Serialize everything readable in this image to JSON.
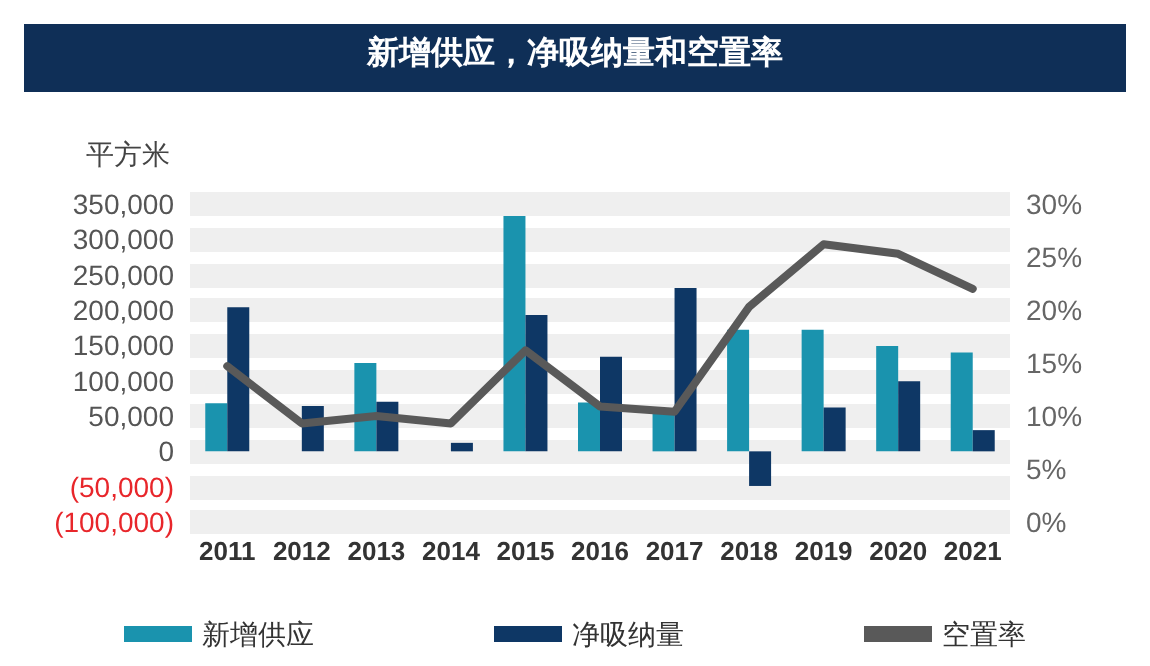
{
  "chart_data": {
    "type": "bar",
    "title": "新增供应，净吸纳量和空置率",
    "ylabel": "平方米",
    "categories": [
      "2011",
      "2012",
      "2013",
      "2014",
      "2015",
      "2016",
      "2017",
      "2018",
      "2019",
      "2020",
      "2021"
    ],
    "series": [
      {
        "name": "新增供应",
        "color": "#1a93ae",
        "values": [
          68000,
          0,
          125000,
          0,
          333000,
          69000,
          55000,
          172000,
          172000,
          149000,
          140000
        ]
      },
      {
        "name": "净吸纳量",
        "color": "#0e3765",
        "values": [
          204000,
          64000,
          70000,
          12000,
          193000,
          134000,
          231000,
          -49000,
          62000,
          99000,
          30000
        ]
      },
      {
        "name": "空置率",
        "type": "line",
        "axis": "y2",
        "color": "#595959",
        "marker": "none",
        "values": [
          14.7,
          9.3,
          10,
          9.3,
          16.2,
          10.9,
          10.4,
          20.3,
          26.2,
          25.3,
          22
        ]
      }
    ],
    "ylim": [
      -100000,
      350000
    ],
    "yticks": [
      {
        "value": -100000,
        "label": "(100,000)"
      },
      {
        "value": -50000,
        "label": "(50,000)"
      },
      {
        "value": 0,
        "label": "0"
      },
      {
        "value": 50000,
        "label": "50,000"
      },
      {
        "value": 100000,
        "label": "100,000"
      },
      {
        "value": 150000,
        "label": "150,000"
      },
      {
        "value": 200000,
        "label": "200,000"
      },
      {
        "value": 250000,
        "label": "250,000"
      },
      {
        "value": 300000,
        "label": "300,000"
      },
      {
        "value": 350000,
        "label": "350,000"
      }
    ],
    "y2lim": [
      0,
      30
    ],
    "y2ticks": [
      {
        "value": 0,
        "label": "0%"
      },
      {
        "value": 5,
        "label": "5%"
      },
      {
        "value": 10,
        "label": "10%"
      },
      {
        "value": 15,
        "label": "15%"
      },
      {
        "value": 20,
        "label": "20%"
      },
      {
        "value": 25,
        "label": "25%"
      },
      {
        "value": 30,
        "label": "30%"
      }
    ],
    "grid": "y",
    "legend": "bottom"
  }
}
